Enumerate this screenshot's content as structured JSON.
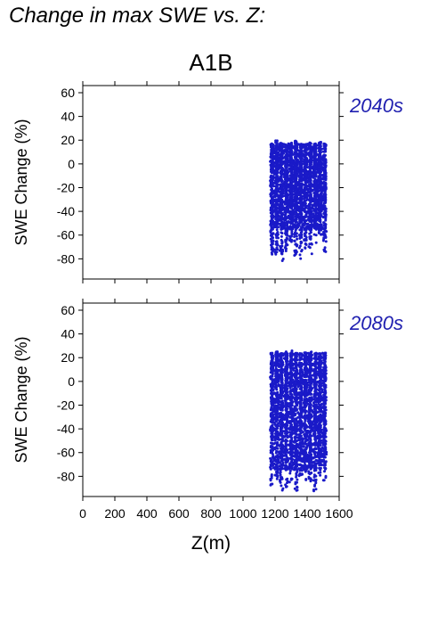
{
  "header": {
    "title": "Change in max SWE vs. Z:"
  },
  "scenario": "A1B",
  "colors": {
    "points": "#1a1ac8",
    "period_label": "#2020b0",
    "axis": "#000000"
  },
  "chart_data": [
    {
      "type": "scatter",
      "period": "2040s",
      "xlabel": "Z(m)",
      "ylabel": "SWE Change (%)",
      "xlim": [
        0,
        1600
      ],
      "ylim": [
        -97,
        66
      ],
      "xticks": [
        0,
        200,
        400,
        600,
        800,
        1000,
        1200,
        1400,
        1600
      ],
      "yticks": [
        60,
        40,
        20,
        0,
        -20,
        -40,
        -60,
        -80
      ],
      "grid": false,
      "point_color": "#1a1ac8",
      "x_range": [
        1170,
        1520
      ],
      "y_range": [
        -82,
        20
      ],
      "dense_band_x": [
        1170,
        1520
      ],
      "dense_band_y": [
        -55,
        17
      ],
      "columns": [
        {
          "x": 1180,
          "ymin": -80,
          "ymax": 17
        },
        {
          "x": 1210,
          "ymin": -78,
          "ymax": 20
        },
        {
          "x": 1240,
          "ymin": -82,
          "ymax": 18
        },
        {
          "x": 1270,
          "ymin": -75,
          "ymax": 17
        },
        {
          "x": 1300,
          "ymin": -70,
          "ymax": 18
        },
        {
          "x": 1330,
          "ymin": -78,
          "ymax": 20
        },
        {
          "x": 1360,
          "ymin": -80,
          "ymax": 17
        },
        {
          "x": 1390,
          "ymin": -72,
          "ymax": 17
        },
        {
          "x": 1420,
          "ymin": -76,
          "ymax": 18
        },
        {
          "x": 1450,
          "ymin": -68,
          "ymax": 17
        },
        {
          "x": 1480,
          "ymin": -60,
          "ymax": 19
        },
        {
          "x": 1510,
          "ymin": -75,
          "ymax": 17
        }
      ]
    },
    {
      "type": "scatter",
      "period": "2080s",
      "xlabel": "Z(m)",
      "ylabel": "SWE Change (%)",
      "xlim": [
        0,
        1600
      ],
      "ylim": [
        -97,
        66
      ],
      "xticks": [
        0,
        200,
        400,
        600,
        800,
        1000,
        1200,
        1400,
        1600
      ],
      "yticks": [
        60,
        40,
        20,
        0,
        -20,
        -40,
        -60,
        -80
      ],
      "grid": false,
      "point_color": "#1a1ac8",
      "x_range": [
        1170,
        1520
      ],
      "y_range": [
        -94,
        27
      ],
      "dense_band_x": [
        1170,
        1520
      ],
      "dense_band_y": [
        -75,
        24
      ],
      "columns": [
        {
          "x": 1180,
          "ymin": -88,
          "ymax": 24
        },
        {
          "x": 1210,
          "ymin": -86,
          "ymax": 26
        },
        {
          "x": 1240,
          "ymin": -92,
          "ymax": 24
        },
        {
          "x": 1270,
          "ymin": -90,
          "ymax": 25
        },
        {
          "x": 1300,
          "ymin": -85,
          "ymax": 26
        },
        {
          "x": 1330,
          "ymin": -92,
          "ymax": 26
        },
        {
          "x": 1360,
          "ymin": -88,
          "ymax": 24
        },
        {
          "x": 1390,
          "ymin": -84,
          "ymax": 25
        },
        {
          "x": 1420,
          "ymin": -87,
          "ymax": 25
        },
        {
          "x": 1450,
          "ymin": -94,
          "ymax": 24
        },
        {
          "x": 1480,
          "ymin": -80,
          "ymax": 24
        },
        {
          "x": 1510,
          "ymin": -84,
          "ymax": 24
        }
      ]
    }
  ]
}
